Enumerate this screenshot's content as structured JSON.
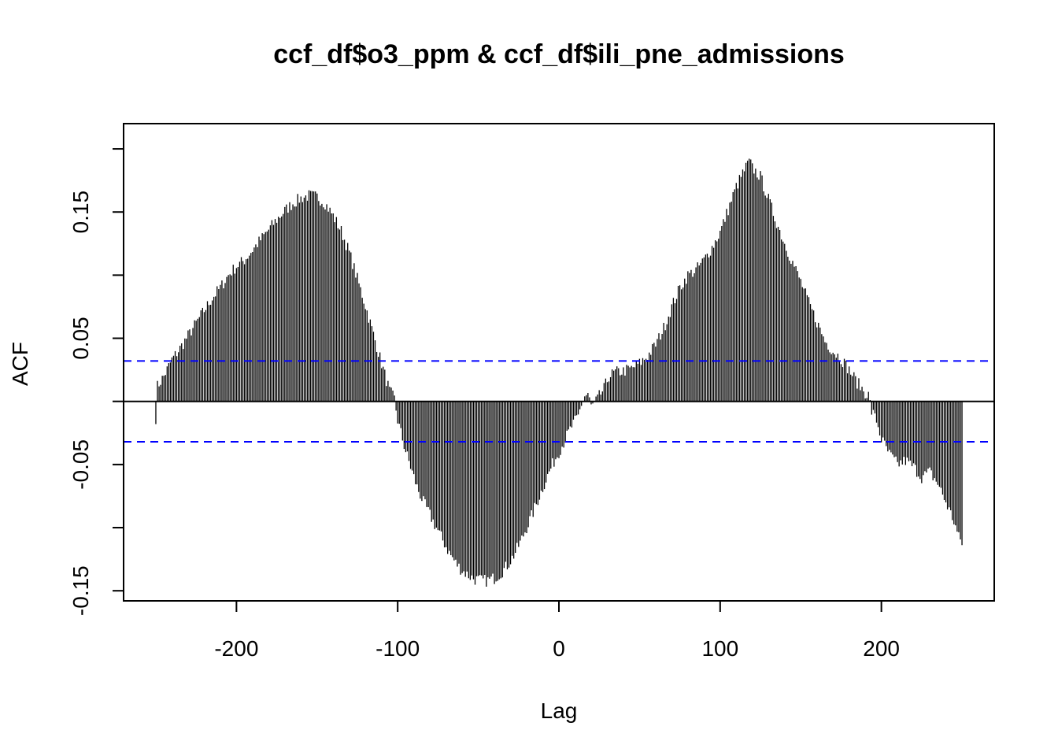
{
  "chart_data": {
    "type": "bar",
    "subtype": "ccf",
    "title": "ccf_df$o3_ppm & ccf_df$ili_pne_admissions",
    "xlabel": "Lag",
    "ylabel": "ACF",
    "xlim": [
      -270,
      270
    ],
    "ylim": [
      -0.158,
      0.22
    ],
    "x_ticks": [
      -200,
      -100,
      0,
      100,
      200
    ],
    "x_tick_labels": [
      "-200",
      "-100",
      "0",
      "100",
      "200"
    ],
    "y_ticks": [
      -0.15,
      -0.1,
      -0.05,
      0,
      0.05,
      0.1,
      0.15,
      0.2
    ],
    "y_tick_labels": [
      "-0.15",
      "",
      "-0.05",
      "",
      "0.05",
      "",
      "0.15",
      ""
    ],
    "confidence_band": 0.032,
    "confidence_color": "#0000ff",
    "bar_color": "#000000",
    "lag_range": [
      -250,
      250
    ],
    "envelope": [
      [
        -250,
        -0.013
      ],
      [
        -249,
        0.012
      ],
      [
        -245,
        0.02
      ],
      [
        -240,
        0.033
      ],
      [
        -235,
        0.042
      ],
      [
        -230,
        0.052
      ],
      [
        -225,
        0.062
      ],
      [
        -220,
        0.072
      ],
      [
        -215,
        0.082
      ],
      [
        -210,
        0.09
      ],
      [
        -205,
        0.1
      ],
      [
        -200,
        0.107
      ],
      [
        -195,
        0.112
      ],
      [
        -190,
        0.12
      ],
      [
        -185,
        0.128
      ],
      [
        -180,
        0.136
      ],
      [
        -175,
        0.144
      ],
      [
        -170,
        0.151
      ],
      [
        -165,
        0.157
      ],
      [
        -160,
        0.161
      ],
      [
        -155,
        0.163
      ],
      [
        -150,
        0.162
      ],
      [
        -145,
        0.157
      ],
      [
        -140,
        0.147
      ],
      [
        -135,
        0.135
      ],
      [
        -130,
        0.118
      ],
      [
        -125,
        0.097
      ],
      [
        -120,
        0.076
      ],
      [
        -115,
        0.053
      ],
      [
        -110,
        0.03
      ],
      [
        -105,
        0.008
      ],
      [
        -102,
        0.002
      ],
      [
        -100,
        -0.015
      ],
      [
        -96,
        -0.035
      ],
      [
        -92,
        -0.052
      ],
      [
        -88,
        -0.068
      ],
      [
        -84,
        -0.08
      ],
      [
        -80,
        -0.09
      ],
      [
        -76,
        -0.1
      ],
      [
        -72,
        -0.11
      ],
      [
        -68,
        -0.12
      ],
      [
        -64,
        -0.128
      ],
      [
        -60,
        -0.134
      ],
      [
        -56,
        -0.138
      ],
      [
        -52,
        -0.141
      ],
      [
        -48,
        -0.142
      ],
      [
        -44,
        -0.142
      ],
      [
        -40,
        -0.14
      ],
      [
        -36,
        -0.136
      ],
      [
        -32,
        -0.13
      ],
      [
        -28,
        -0.122
      ],
      [
        -24,
        -0.112
      ],
      [
        -20,
        -0.1
      ],
      [
        -16,
        -0.088
      ],
      [
        -12,
        -0.075
      ],
      [
        -8,
        -0.062
      ],
      [
        -4,
        -0.05
      ],
      [
        0,
        -0.04
      ],
      [
        4,
        -0.03
      ],
      [
        8,
        -0.02
      ],
      [
        12,
        -0.012
      ],
      [
        14,
        -0.002
      ],
      [
        16,
        0.004
      ],
      [
        18,
        0.006
      ],
      [
        20,
        -0.004
      ],
      [
        22,
        -0.002
      ],
      [
        25,
        0.004
      ],
      [
        28,
        0.01
      ],
      [
        31,
        0.02
      ],
      [
        35,
        0.023
      ],
      [
        40,
        0.024
      ],
      [
        45,
        0.026
      ],
      [
        50,
        0.03
      ],
      [
        55,
        0.036
      ],
      [
        60,
        0.045
      ],
      [
        65,
        0.058
      ],
      [
        70,
        0.075
      ],
      [
        75,
        0.09
      ],
      [
        80,
        0.1
      ],
      [
        85,
        0.104
      ],
      [
        90,
        0.112
      ],
      [
        95,
        0.122
      ],
      [
        100,
        0.134
      ],
      [
        105,
        0.152
      ],
      [
        110,
        0.17
      ],
      [
        115,
        0.183
      ],
      [
        118,
        0.19
      ],
      [
        120,
        0.185
      ],
      [
        125,
        0.178
      ],
      [
        130,
        0.16
      ],
      [
        135,
        0.142
      ],
      [
        140,
        0.125
      ],
      [
        145,
        0.11
      ],
      [
        150,
        0.095
      ],
      [
        155,
        0.078
      ],
      [
        160,
        0.063
      ],
      [
        165,
        0.048
      ],
      [
        170,
        0.04
      ],
      [
        175,
        0.034
      ],
      [
        180,
        0.025
      ],
      [
        185,
        0.015
      ],
      [
        190,
        0.007
      ],
      [
        192,
        0.005
      ],
      [
        194,
        -0.008
      ],
      [
        197,
        -0.015
      ],
      [
        200,
        -0.03
      ],
      [
        205,
        -0.042
      ],
      [
        210,
        -0.05
      ],
      [
        215,
        -0.047
      ],
      [
        220,
        -0.052
      ],
      [
        225,
        -0.06
      ],
      [
        230,
        -0.056
      ],
      [
        235,
        -0.065
      ],
      [
        240,
        -0.08
      ],
      [
        245,
        -0.095
      ],
      [
        248,
        -0.108
      ],
      [
        250,
        -0.112
      ]
    ]
  }
}
